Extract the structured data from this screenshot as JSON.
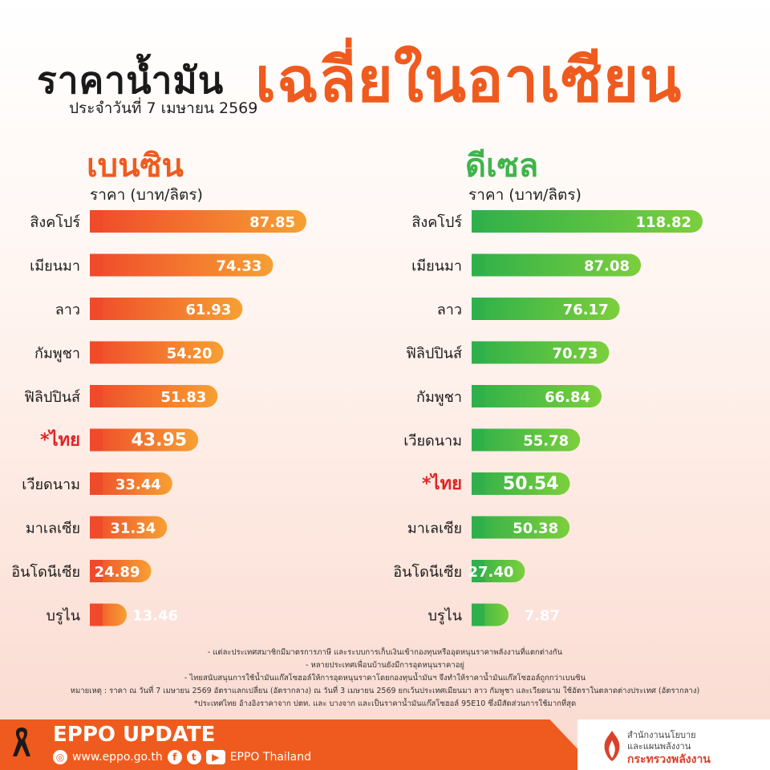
{
  "header": {
    "title_main": "ราคาน้ำมัน",
    "title_accent": "เฉลี่ยในอาเซียน",
    "date": "ประจำวันที่  7 เมษายน 2569"
  },
  "colors": {
    "orange": "#ef5b1e",
    "green": "#3fb44a",
    "thai_red": "#e02424"
  },
  "chart_data": [
    {
      "type": "bar",
      "title": "เบนซิน",
      "ylabel": "ราคา (บาท/ลิตร)",
      "categories": [
        "สิงคโปร์",
        "เมียนมา",
        "ลาว",
        "กัมพูชา",
        "ฟิลิปปินส์",
        "*ไทย",
        "เวียดนาม",
        "มาเลเซีย",
        "อินโดนีเซีย",
        "บรูไน"
      ],
      "values": [
        87.85,
        74.33,
        61.93,
        54.2,
        51.83,
        43.95,
        33.44,
        31.34,
        24.89,
        13.46
      ],
      "labels": [
        "87.85",
        "74.33",
        "61.93",
        "54.20",
        "51.83",
        "43.95",
        "33.44",
        "31.34",
        "24.89",
        "13.46"
      ],
      "highlight": "*ไทย",
      "color": "#ef5b1e"
    },
    {
      "type": "bar",
      "title": "ดีเซล",
      "ylabel": "ราคา (บาท/ลิตร)",
      "categories": [
        "สิงคโปร์",
        "เมียนมา",
        "ลาว",
        "ฟิลิปปินส์",
        "กัมพูชา",
        "เวียดนาม",
        "*ไทย",
        "มาเลเซีย",
        "อินโดนีเซีย",
        "บรูไน"
      ],
      "values": [
        118.82,
        87.08,
        76.17,
        70.73,
        66.84,
        55.78,
        50.54,
        50.38,
        27.4,
        7.87
      ],
      "labels": [
        "118.82",
        "87.08",
        "76.17",
        "70.73",
        "66.84",
        "55.78",
        "50.54",
        "50.38",
        "27.40",
        "7.87"
      ],
      "highlight": "*ไทย",
      "color": "#3fb44a"
    }
  ],
  "notes": [
    "- แต่ละประเทศสมาชิกมีมาตรการภาษี และระบบการเก็บเงินเข้ากองทุนหรืออุดหนุนราคาพลังงานที่แตกต่างกัน",
    "- หลายประเทศเพื่อนบ้านยังมีการอุดหนุนราคาอยู่",
    "- ไทยสนับสนุนการใช้น้ำมันแก๊สโซฮอล์ให้การอุดหนุนราคาโดยกองทุนน้ำมันฯ จึงทำให้ราคาน้ำมันแก๊สโซฮอล์ถูกกว่าเบนซิน",
    "หมายเหตุ : ราคา ณ วันที่ 7 เมษายน 2569 อัตราแลกเปลี่ยน (อัตรากลาง) ณ วันที่ 3 เมษายน 2569 ยกเว้นประเทศเมียนมา ลาว กัมพูชา และเวียดนาม ใช้อัตราในตลาดต่างประเทศ (อัตรากลาง)",
    "*ประเทศไทย อ้างอิงราคาจาก ปตท. และ บางจาก และเป็นราคาน้ำมันแก๊สโซฮอล์ 95E10 ซึ่งมีสัดส่วนการใช้มากที่สุด"
  ],
  "footer": {
    "brand": "EPPO UPDATE",
    "website": "www.eppo.go.th",
    "social": "EPPO Thailand",
    "ministry_line1": "สำนักงานนโยบาย",
    "ministry_line2": "และแผนพลังงาน",
    "ministry_line3": "กระทรวงพลังงาน"
  }
}
